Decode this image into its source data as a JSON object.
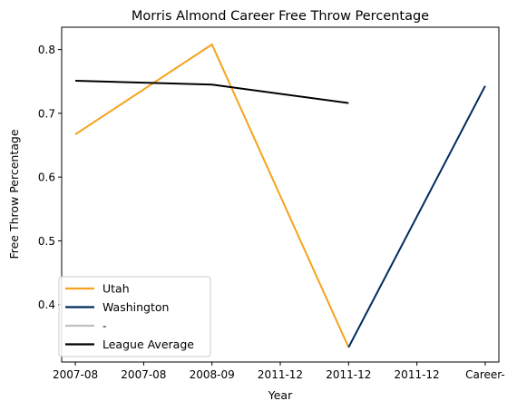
{
  "chart_data": {
    "type": "line",
    "title": "Morris Almond Career Free Throw Percentage",
    "xlabel": "Year",
    "ylabel": "Free Throw Percentage",
    "x_ticks": [
      "2007-08",
      "2007-08",
      "2008-09",
      "2011-12",
      "2011-12",
      "2011-12",
      "Career-"
    ],
    "xlim": [
      -0.2,
      6.2
    ],
    "ylim": [
      0.31,
      0.835
    ],
    "y_ticks": [
      0.4,
      0.5,
      0.6,
      0.7,
      0.8
    ],
    "y_tick_labels": [
      "0.4",
      "0.5",
      "0.6",
      "0.7",
      "0.8"
    ],
    "grid": false,
    "legend_position": "lower-left",
    "series": [
      {
        "name": "Utah",
        "color": "#F5A31B",
        "x": [
          0,
          2,
          4
        ],
        "values": [
          0.667,
          0.808,
          0.333
        ]
      },
      {
        "name": "Washington",
        "color": "#002B5C",
        "x": [
          4,
          6
        ],
        "values": [
          0.333,
          0.743
        ]
      },
      {
        "name": "-",
        "color": "#BEC0C2",
        "x": [],
        "values": []
      },
      {
        "name": "League Average",
        "color": "#000000",
        "x": [
          0,
          2,
          4
        ],
        "values": [
          0.751,
          0.745,
          0.716
        ]
      }
    ]
  }
}
